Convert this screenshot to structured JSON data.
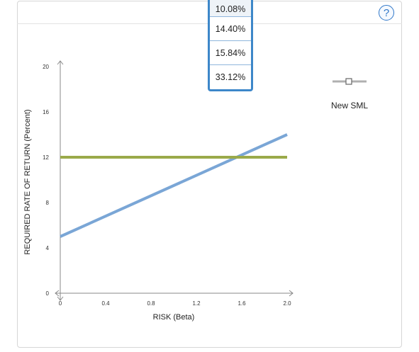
{
  "dropdown": {
    "options": [
      "10.08%",
      "14.40%",
      "15.84%",
      "33.12%"
    ]
  },
  "help": {
    "label": "?"
  },
  "legend": {
    "label": "New SML",
    "color": "#b0b0b0"
  },
  "chart_data": {
    "type": "line",
    "xlabel": "RISK (Beta)",
    "ylabel": "REQUIRED RATE OF RETURN (Percent)",
    "xlim": [
      0,
      2.0
    ],
    "ylim": [
      0,
      20
    ],
    "x_ticks": [
      {
        "value": 0,
        "label": "0"
      },
      {
        "value": 0.4,
        "label": "0.4"
      },
      {
        "value": 0.8,
        "label": "0.8"
      },
      {
        "value": 1.2,
        "label": "1.2"
      },
      {
        "value": 1.6,
        "label": "1.6"
      },
      {
        "value": 2.0,
        "label": "2.0"
      }
    ],
    "y_ticks": [
      {
        "value": 0,
        "label": "0"
      },
      {
        "value": 4,
        "label": "4"
      },
      {
        "value": 8,
        "label": "8"
      },
      {
        "value": 12,
        "label": "12"
      },
      {
        "value": 16,
        "label": "16"
      },
      {
        "value": 20,
        "label": "20"
      }
    ],
    "series": [
      {
        "color": "#7aa6d6",
        "x": [
          0,
          2.0
        ],
        "y": [
          5,
          14
        ]
      },
      {
        "color": "#9aaa4a",
        "x": [
          0,
          2.0
        ],
        "y": [
          12,
          12
        ]
      }
    ],
    "grid": false,
    "legend_position": "right"
  }
}
